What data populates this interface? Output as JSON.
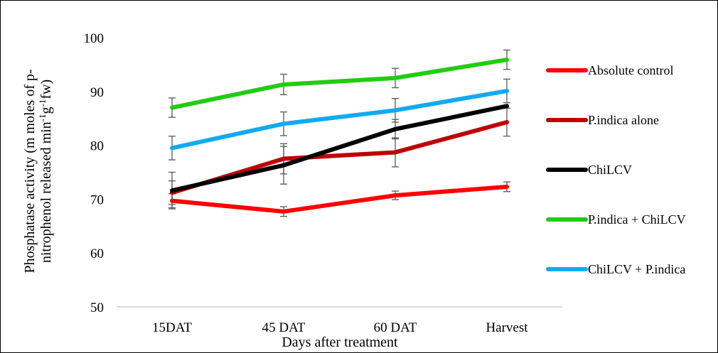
{
  "chart_data": {
    "type": "line",
    "title": "",
    "xlabel": "Days after treatment",
    "ylabel_lines": [
      "Phosphatase activity (m moles of p-",
      "nitrophenol released min",
      "-1",
      "g",
      "-1",
      "fw)"
    ],
    "ylim": [
      50,
      100
    ],
    "yticks": [
      50,
      60,
      70,
      80,
      90,
      100
    ],
    "categories": [
      "15DAT",
      "45 DAT",
      "60 DAT",
      "Harvest"
    ],
    "grid": false,
    "legend_position": "right",
    "series": [
      {
        "name": "Absolute control",
        "color": "#ff0000",
        "values": [
          69.7,
          67.7,
          70.7,
          72.3
        ],
        "errors": [
          1.3,
          0.9,
          0.8,
          0.9
        ]
      },
      {
        "name": "P.indica alone",
        "color": "#c00000",
        "values": [
          71.2,
          77.5,
          78.7,
          84.3
        ],
        "errors": [
          2.2,
          2.8,
          2.7,
          2.6
        ]
      },
      {
        "name": "ChiLCV",
        "color": "#000000",
        "values": [
          71.6,
          76.3,
          83.0,
          87.3
        ],
        "errors": [
          3.4,
          3.5,
          1.8,
          0.0
        ]
      },
      {
        "name": "P.indica + ChiLCV",
        "color": "#22cc11",
        "values": [
          87.0,
          91.3,
          92.5,
          95.9
        ],
        "errors": [
          1.8,
          1.9,
          1.8,
          1.8
        ]
      },
      {
        "name": "ChiLCV + P.indica",
        "color": "#11aaee",
        "values": [
          79.5,
          84.0,
          86.5,
          90.1
        ],
        "errors": [
          2.2,
          2.2,
          2.2,
          2.2
        ]
      }
    ]
  }
}
